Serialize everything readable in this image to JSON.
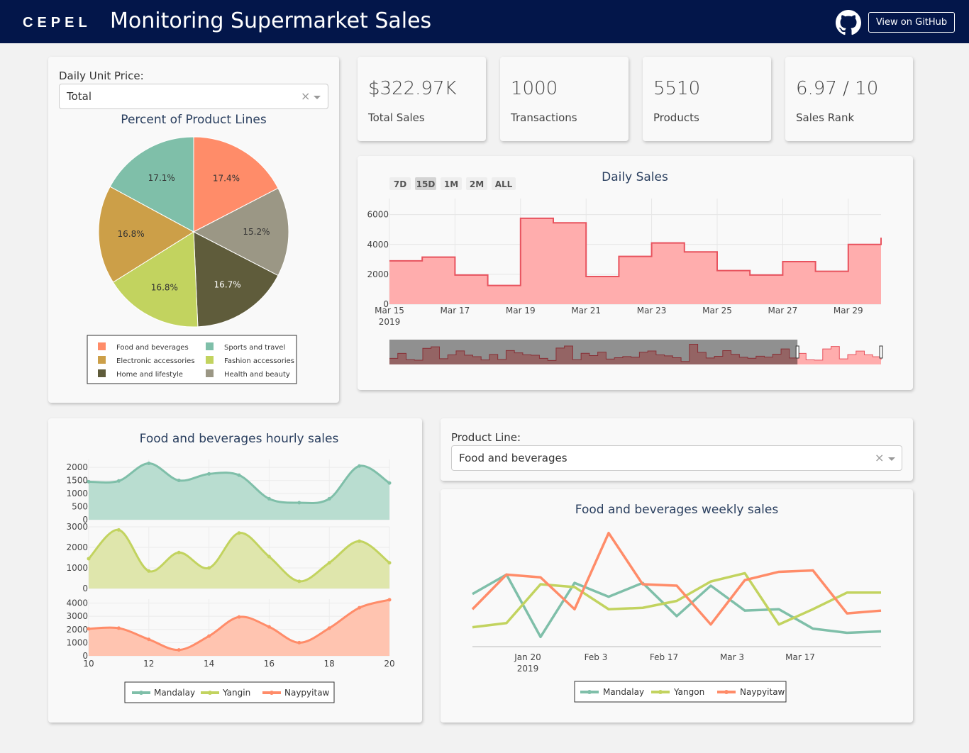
{
  "header": {
    "logo": "CEPEL",
    "title": "Monitoring Supermarket Sales",
    "github_button": "View on GitHub",
    "colors": {
      "background": "#03164a",
      "text": "#ffffff"
    },
    "icon": "github-icon"
  },
  "price_filter": {
    "label": "Daily Unit Price:",
    "selected": "Total",
    "clear": "×"
  },
  "product_filter": {
    "label": "Product Line:",
    "selected": "Food and beverages",
    "clear": "×"
  },
  "kpis": [
    {
      "value": "$322.97K",
      "label": "Total Sales"
    },
    {
      "value": "1000",
      "label": "Transactions"
    },
    {
      "value": "5510",
      "label": "Products"
    },
    {
      "value": "6.97 / 10",
      "label": "Sales Rank"
    }
  ],
  "chart_data": [
    {
      "type": "pie",
      "title": "Percent of Product Lines",
      "slices": [
        {
          "label": "Food and beverages",
          "value": 17.4,
          "text": "17.4%",
          "color": "#ff8c69"
        },
        {
          "label": "Health and beauty",
          "value": 15.2,
          "text": "15.2%",
          "color": "#9b9785"
        },
        {
          "label": "Home and lifestyle",
          "value": 16.7,
          "text": "16.7%",
          "color": "#5f5c3b"
        },
        {
          "label": "Fashion accessories",
          "value": 16.8,
          "text": "16.8%",
          "color": "#c2d35f"
        },
        {
          "label": "Electronic accessories",
          "value": 16.8,
          "text": "16.8%",
          "color": "#cc9f48"
        },
        {
          "label": "Sports and travel",
          "value": 17.1,
          "text": "17.1%",
          "color": "#7fbfa9"
        }
      ],
      "legend": {
        "placement": "bottom",
        "entries": [
          "Food and beverages",
          "Sports and travel",
          "Electronic accessories",
          "Fashion accessories",
          "Home and lifestyle",
          "Health and beauty"
        ]
      }
    },
    {
      "type": "area",
      "title": "Daily Sales",
      "range_buttons": [
        "7D",
        "15D",
        "1M",
        "2M",
        "ALL"
      ],
      "active_range": "15D",
      "x_ticks": [
        "Mar 15",
        "Mar 17",
        "Mar 19",
        "Mar 21",
        "Mar 23",
        "Mar 25",
        "Mar 27",
        "Mar 29"
      ],
      "x_year": "2019",
      "y_ticks": [
        0,
        2000,
        4000,
        6000
      ],
      "ylim": [
        0,
        6600
      ],
      "dates": [
        "Mar 15",
        "Mar 16",
        "Mar 17",
        "Mar 18",
        "Mar 19",
        "Mar 20",
        "Mar 21",
        "Mar 22",
        "Mar 23",
        "Mar 24",
        "Mar 25",
        "Mar 26",
        "Mar 27",
        "Mar 28",
        "Mar 29",
        "Mar 30"
      ],
      "values": [
        2900,
        3150,
        1950,
        1250,
        5750,
        5450,
        1850,
        3200,
        4100,
        3500,
        2250,
        1950,
        2850,
        2200,
        4000,
        4450
      ],
      "line_shape": "step",
      "color": "#e8535e",
      "fill": "#ffadad",
      "grid": true
    },
    {
      "type": "area",
      "title": "Food and beverages hourly sales",
      "x_ticks": [
        10,
        12,
        14,
        16,
        18,
        20
      ],
      "x": [
        10,
        11,
        12,
        13,
        14,
        15,
        16,
        17,
        18,
        19,
        20
      ],
      "series": [
        {
          "name": "Mandalay",
          "color": "#7fbfa9",
          "fill": "#b9ddd0",
          "y_ticks": [
            0,
            500,
            1000,
            1500,
            2000
          ],
          "ylim": [
            0,
            2300
          ],
          "values": [
            1450,
            1480,
            2150,
            1500,
            1750,
            1700,
            800,
            650,
            800,
            2050,
            1400
          ]
        },
        {
          "name": "Yangin",
          "color": "#c2d35f",
          "fill": "#dfe6ac",
          "y_ticks": [
            0,
            1000,
            2000,
            3000
          ],
          "ylim": [
            0,
            3000
          ],
          "values": [
            1450,
            2850,
            850,
            1750,
            1000,
            2700,
            1550,
            350,
            1250,
            2300,
            1250
          ]
        },
        {
          "name": "Naypyitaw",
          "color": "#ff8c69",
          "fill": "#ffc4b0",
          "y_ticks": [
            0,
            1000,
            2000,
            3000,
            4000
          ],
          "ylim": [
            0,
            4300
          ],
          "values": [
            2050,
            2100,
            1250,
            450,
            1500,
            2950,
            2200,
            1000,
            2100,
            3650,
            4250
          ]
        }
      ],
      "legend": {
        "placement": "bottom",
        "entries": [
          "Mandalay",
          "Yangin",
          "Naypyitaw"
        ]
      },
      "grid": true
    },
    {
      "type": "line",
      "title": "Food and beverages weekly sales",
      "x_ticks": [
        "Jan 20",
        "Feb 3",
        "Feb 17",
        "Mar 3",
        "Mar 17"
      ],
      "x_year": "2019",
      "x_weeks": [
        "Jan 6",
        "Jan 13",
        "Jan 20",
        "Jan 27",
        "Feb 3",
        "Feb 10",
        "Feb 17",
        "Feb 24",
        "Mar 3",
        "Mar 10",
        "Mar 17",
        "Mar 24",
        "Mar 31"
      ],
      "series": [
        {
          "name": "Mandalay",
          "color": "#7fbfa9",
          "values": [
            3800,
            5200,
            700,
            4600,
            3600,
            4600,
            2200,
            4400,
            2600,
            2700,
            1300,
            1000,
            1100
          ]
        },
        {
          "name": "Yangon",
          "color": "#c2d35f",
          "values": [
            1400,
            1700,
            4500,
            4300,
            2700,
            2800,
            3300,
            4700,
            5300,
            1600,
            2700,
            3900,
            3900
          ]
        },
        {
          "name": "Naypyitaw",
          "color": "#ff8c69",
          "values": [
            2700,
            5200,
            5000,
            2700,
            8200,
            4500,
            4400,
            1600,
            4800,
            5400,
            5500,
            2400,
            2600
          ]
        }
      ],
      "ylim": [
        0,
        8800
      ],
      "legend": {
        "placement": "bottom",
        "entries": [
          "Mandalay",
          "Yangon",
          "Naypyitaw"
        ]
      },
      "grid": false
    }
  ]
}
